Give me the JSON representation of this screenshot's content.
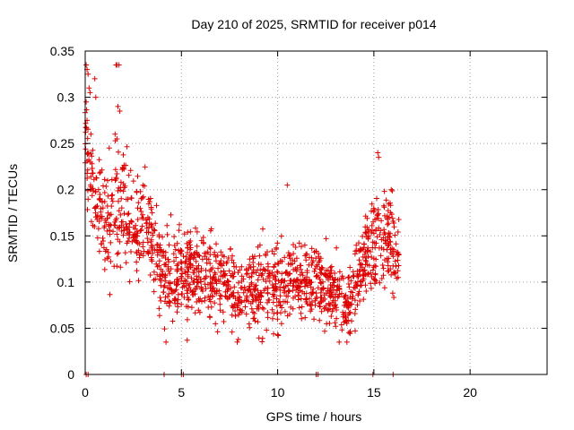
{
  "chart_data": {
    "type": "scatter",
    "title": "Day 210 of 2025, SRMTID for receiver p014",
    "xlabel": "GPS time / hours",
    "ylabel": "SRMTID / TECUs",
    "xlim": [
      0,
      24
    ],
    "ylim": [
      0,
      0.35
    ],
    "xticks": [
      0,
      5,
      10,
      15,
      20
    ],
    "yticks": [
      0,
      0.05,
      0.1,
      0.15,
      0.2,
      0.25,
      0.3,
      0.35
    ],
    "xtick_labels": [
      "0",
      "5",
      "10",
      "15",
      "20"
    ],
    "ytick_labels": [
      "0",
      "0.05",
      "0.1",
      "0.15",
      "0.2",
      "0.25",
      "0.3",
      "0.35"
    ],
    "grid": true,
    "marker": "+",
    "marker_color": "#dd0000",
    "envelope": {
      "hours": [
        0.0,
        0.5,
        1.0,
        1.5,
        2.0,
        2.5,
        3.0,
        3.5,
        4.0,
        5.0,
        6.0,
        7.0,
        8.0,
        9.0,
        10.0,
        11.0,
        12.0,
        13.0,
        13.5,
        14.0,
        14.5,
        15.0,
        15.5,
        16.0,
        16.3
      ],
      "center": [
        0.25,
        0.19,
        0.16,
        0.17,
        0.19,
        0.16,
        0.17,
        0.14,
        0.11,
        0.11,
        0.11,
        0.1,
        0.09,
        0.1,
        0.1,
        0.1,
        0.1,
        0.09,
        0.07,
        0.09,
        0.13,
        0.14,
        0.15,
        0.15,
        0.12
      ],
      "spread": [
        0.05,
        0.05,
        0.06,
        0.07,
        0.06,
        0.05,
        0.05,
        0.05,
        0.05,
        0.05,
        0.05,
        0.04,
        0.04,
        0.05,
        0.05,
        0.04,
        0.04,
        0.04,
        0.03,
        0.04,
        0.05,
        0.06,
        0.05,
        0.05,
        0.04
      ]
    },
    "extreme_points": [
      {
        "x": 0.05,
        "y": 0.335
      },
      {
        "x": 0.1,
        "y": 0.33
      },
      {
        "x": 0.15,
        "y": 0.325
      },
      {
        "x": 0.2,
        "y": 0.31
      },
      {
        "x": 0.25,
        "y": 0.305
      },
      {
        "x": 0.05,
        "y": 0.295
      },
      {
        "x": 0.1,
        "y": 0.275
      },
      {
        "x": 0.3,
        "y": 0.26
      },
      {
        "x": 0.5,
        "y": 0.32
      },
      {
        "x": 0.55,
        "y": 0.3
      },
      {
        "x": 1.6,
        "y": 0.335
      },
      {
        "x": 1.65,
        "y": 0.335
      },
      {
        "x": 1.75,
        "y": 0.335
      },
      {
        "x": 1.7,
        "y": 0.29
      },
      {
        "x": 1.8,
        "y": 0.285
      },
      {
        "x": 1.55,
        "y": 0.26
      },
      {
        "x": 1.65,
        "y": 0.255
      },
      {
        "x": 1.25,
        "y": 0.245
      },
      {
        "x": 15.2,
        "y": 0.24
      },
      {
        "x": 15.25,
        "y": 0.235
      },
      {
        "x": 15.9,
        "y": 0.2
      },
      {
        "x": 10.5,
        "y": 0.205
      },
      {
        "x": 13.2,
        "y": 0.035
      },
      {
        "x": 13.6,
        "y": 0.035
      },
      {
        "x": 4.2,
        "y": 0.035
      },
      {
        "x": 7.9,
        "y": 0.035
      }
    ],
    "zero_points": [
      {
        "x": 0.05,
        "y": 0
      },
      {
        "x": 0.15,
        "y": 0
      },
      {
        "x": 4.1,
        "y": 0
      },
      {
        "x": 5.0,
        "y": 0
      },
      {
        "x": 5.1,
        "y": 0
      },
      {
        "x": 12.0,
        "y": 0
      },
      {
        "x": 12.1,
        "y": 0
      },
      {
        "x": 14.95,
        "y": 0
      },
      {
        "x": 16.0,
        "y": 0
      }
    ],
    "generated_point_count": 1500,
    "x_coverage": [
      0.0,
      16.3
    ]
  }
}
